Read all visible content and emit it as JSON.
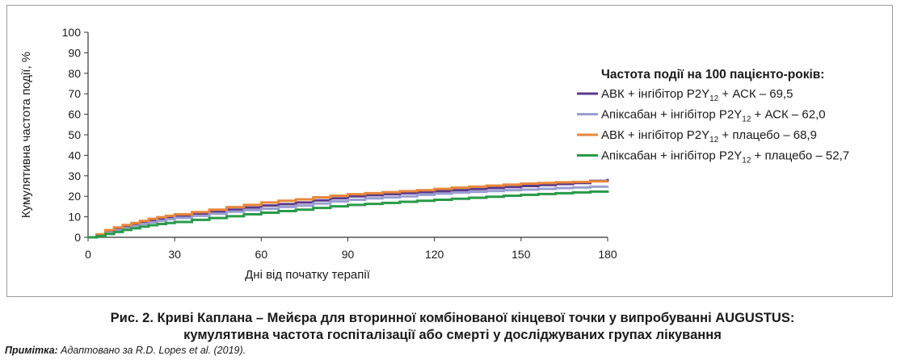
{
  "chart_data": {
    "type": "line",
    "step": true,
    "xlabel": "Дні від початку терапії",
    "ylabel": "Кумулятивна частота події, %",
    "xlim": [
      0,
      180
    ],
    "ylim": [
      0,
      100
    ],
    "xticks": [
      0,
      30,
      60,
      90,
      120,
      150,
      180
    ],
    "yticks": [
      0,
      10,
      20,
      30,
      40,
      50,
      60,
      70,
      80,
      90,
      100
    ],
    "grid": false,
    "legend_position": "right",
    "legend_title": "Частота події на 100 пацієнто-років:",
    "series": [
      {
        "name": "АВК + інгібітор P2Y12 + АСК – 69,5",
        "label_parts": [
          "АВК + інгібітор P2Y",
          "12",
          " + АСК – 69,5"
        ],
        "color": "#5a3a8a",
        "x": [
          0,
          3,
          6,
          9,
          12,
          15,
          18,
          21,
          24,
          27,
          30,
          36,
          42,
          48,
          54,
          60,
          66,
          72,
          78,
          84,
          90,
          96,
          102,
          108,
          114,
          120,
          126,
          132,
          138,
          144,
          150,
          156,
          162,
          168,
          174,
          180
        ],
        "y": [
          0,
          1.0,
          2.5,
          3.8,
          5.0,
          6.0,
          7.0,
          8.0,
          9.0,
          9.8,
          10.5,
          11.5,
          12.5,
          13.5,
          14.5,
          15.5,
          16.2,
          17.0,
          18.0,
          19.0,
          20.0,
          20.5,
          21.0,
          21.5,
          22.0,
          22.5,
          23.0,
          23.5,
          24.0,
          24.5,
          25.0,
          25.5,
          26.0,
          26.5,
          27.5,
          28.5
        ]
      },
      {
        "name": "Апіксабан + інгібітор P2Y12 + АСК – 62,0",
        "label_parts": [
          "Апіксабан + інгібітор P2Y",
          "12",
          " + АСК – 62,0"
        ],
        "color": "#9a9ed0",
        "x": [
          0,
          3,
          6,
          9,
          12,
          15,
          18,
          21,
          24,
          27,
          30,
          36,
          42,
          48,
          54,
          60,
          66,
          72,
          78,
          84,
          90,
          96,
          102,
          108,
          114,
          120,
          126,
          132,
          138,
          144,
          150,
          156,
          162,
          168,
          174,
          180
        ],
        "y": [
          0,
          1.0,
          2.2,
          3.4,
          4.5,
          5.5,
          6.5,
          7.3,
          8.0,
          8.8,
          9.5,
          10.5,
          11.5,
          12.5,
          13.3,
          14.0,
          14.8,
          15.5,
          16.5,
          17.5,
          18.3,
          19.0,
          19.5,
          20.0,
          20.7,
          21.3,
          21.8,
          22.2,
          22.6,
          23.0,
          23.3,
          23.6,
          24.0,
          24.3,
          24.7,
          25.0
        ]
      },
      {
        "name": "АВК + інгібітор P2Y12 + плацебо – 68,9",
        "label_parts": [
          "АВК + інгібітор P2Y",
          "12",
          " + плацебо – 68,9"
        ],
        "color": "#e8873a",
        "x": [
          0,
          3,
          6,
          9,
          12,
          15,
          18,
          21,
          24,
          27,
          30,
          36,
          42,
          48,
          54,
          60,
          66,
          72,
          78,
          84,
          90,
          96,
          102,
          108,
          114,
          120,
          126,
          132,
          138,
          144,
          150,
          156,
          162,
          168,
          174,
          180
        ],
        "y": [
          0,
          1.5,
          3.5,
          4.8,
          6.0,
          7.0,
          8.0,
          9.0,
          9.8,
          10.5,
          11.2,
          12.3,
          13.5,
          14.7,
          15.8,
          17.0,
          17.8,
          18.5,
          19.5,
          20.3,
          21.0,
          21.5,
          22.0,
          22.5,
          23.0,
          23.6,
          24.2,
          24.7,
          25.2,
          25.7,
          26.2,
          26.5,
          26.8,
          27.0,
          27.3,
          27.5
        ]
      },
      {
        "name": "Апіксабан + інгібітор P2Y12 + плацебо – 52,7",
        "label_parts": [
          "Апіксабан + інгібітор P2Y",
          "12",
          " + плацебо – 52,7"
        ],
        "color": "#2a9a4a",
        "x": [
          0,
          3,
          6,
          9,
          12,
          15,
          18,
          21,
          24,
          27,
          30,
          36,
          42,
          48,
          54,
          60,
          66,
          72,
          78,
          84,
          90,
          96,
          102,
          108,
          114,
          120,
          126,
          132,
          138,
          144,
          150,
          156,
          162,
          168,
          174,
          180
        ],
        "y": [
          0,
          0.6,
          1.6,
          2.6,
          3.6,
          4.4,
          5.2,
          5.9,
          6.5,
          7.0,
          7.5,
          8.5,
          9.4,
          10.3,
          11.2,
          12.0,
          12.8,
          13.5,
          14.3,
          15.1,
          15.8,
          16.3,
          16.8,
          17.3,
          17.8,
          18.3,
          18.8,
          19.3,
          19.8,
          20.3,
          20.7,
          21.1,
          21.5,
          21.9,
          22.3,
          22.8
        ]
      }
    ]
  },
  "caption": {
    "line1": "Рис. 2. Криві Каплана – Мейєра для вторинної комбінованої кінцевої точки у випробуванні AUGUSTUS:",
    "line2": "кумулятивна частота госпіталізації або смерті у досліджуваних групах лікування",
    "note_label": "Примітка:",
    "note_text": " Адаптовано за R.D. Lopes et al. (2019)."
  }
}
